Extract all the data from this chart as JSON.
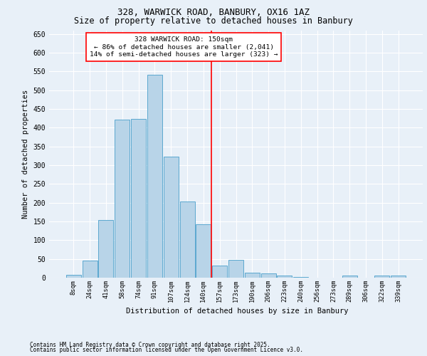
{
  "title1": "328, WARWICK ROAD, BANBURY, OX16 1AZ",
  "title2": "Size of property relative to detached houses in Banbury",
  "xlabel": "Distribution of detached houses by size in Banbury",
  "ylabel": "Number of detached properties",
  "footnote1": "Contains HM Land Registry data © Crown copyright and database right 2025.",
  "footnote2": "Contains public sector information licensed under the Open Government Licence v3.0.",
  "categories": [
    "8sqm",
    "24sqm",
    "41sqm",
    "58sqm",
    "74sqm",
    "91sqm",
    "107sqm",
    "124sqm",
    "140sqm",
    "157sqm",
    "173sqm",
    "190sqm",
    "206sqm",
    "223sqm",
    "240sqm",
    "256sqm",
    "273sqm",
    "289sqm",
    "306sqm",
    "322sqm",
    "339sqm"
  ],
  "values": [
    7,
    46,
    154,
    422,
    423,
    542,
    323,
    204,
    142,
    33,
    48,
    14,
    12,
    5,
    1,
    0,
    0,
    6,
    0,
    6,
    6
  ],
  "bar_color": "#b8d4e8",
  "bar_edge_color": "#5ba8d0",
  "annotation_title": "328 WARWICK ROAD: 150sqm",
  "annotation_line1": "← 86% of detached houses are smaller (2,041)",
  "annotation_line2": "14% of semi-detached houses are larger (323) →",
  "ylim": [
    0,
    660
  ],
  "yticks": [
    0,
    50,
    100,
    150,
    200,
    250,
    300,
    350,
    400,
    450,
    500,
    550,
    600,
    650
  ],
  "bg_color": "#e8f0f8",
  "plot_bg_color": "#e8f0f8",
  "grid_color": "#ffffff"
}
